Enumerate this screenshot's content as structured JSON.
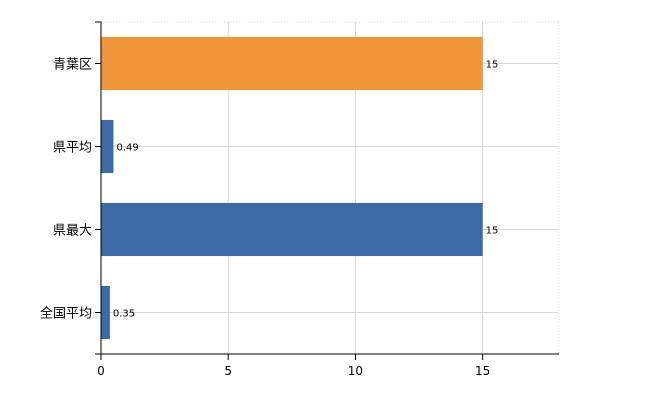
{
  "chart_data": {
    "type": "bar",
    "orientation": "horizontal",
    "categories": [
      "青葉区",
      "県平均",
      "県最大",
      "全国平均"
    ],
    "values": [
      15,
      0.49,
      15,
      0.35
    ],
    "data_labels": [
      "15",
      "0.49",
      "15",
      "0.35"
    ],
    "bar_colors": [
      "#f0963a",
      "#3d6aa6",
      "#3d6aa6",
      "#3d6aa6"
    ],
    "xlim": [
      0,
      18
    ],
    "xticks": [
      0,
      5,
      10,
      15
    ],
    "xtick_labels": [
      "0",
      "5",
      "10",
      "15"
    ],
    "grid": true,
    "grid_color": "#d9d9d9",
    "legend": "none"
  }
}
